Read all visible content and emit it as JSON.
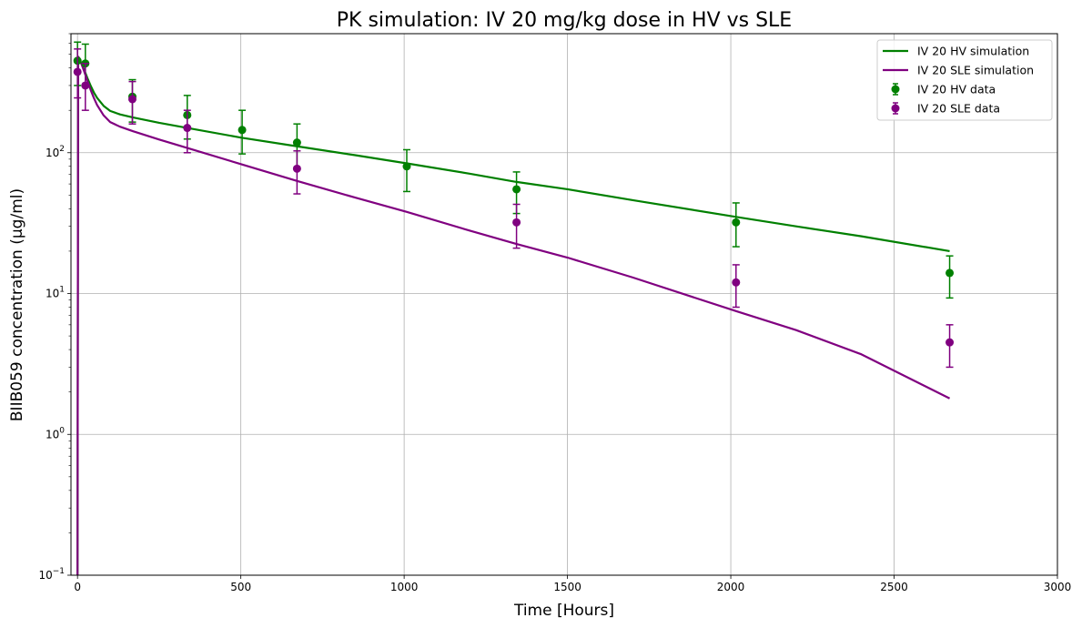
{
  "chart_data": {
    "type": "line",
    "title": "PK simulation: IV 20 mg/kg dose in HV vs SLE",
    "xlabel": "Time [Hours]",
    "ylabel": "BIIB059 concentration (µg/ml)",
    "xlim": [
      -20,
      3000
    ],
    "ylim": [
      0.1,
      700
    ],
    "yscale": "log",
    "grid": true,
    "legend_position": "top-right",
    "x_ticks": [
      0,
      500,
      1000,
      1500,
      2000,
      2500,
      3000
    ],
    "x_tick_labels": [
      "0",
      "500",
      "1000",
      "1500",
      "2000",
      "2500",
      "3000"
    ],
    "y_ticks": [
      0.1,
      1,
      10,
      100
    ],
    "y_tick_labels": [
      {
        "base": "10",
        "exp": "−1"
      },
      {
        "base": "10",
        "exp": "0"
      },
      {
        "base": "10",
        "exp": "1"
      },
      {
        "base": "10",
        "exp": "2"
      }
    ],
    "series": [
      {
        "name": "IV 20 HV simulation",
        "kind": "line",
        "color": "#008000",
        "x": [
          0,
          2,
          5,
          10,
          20,
          30,
          40,
          50,
          60,
          80,
          100,
          130,
          170,
          250,
          336,
          500,
          672,
          850,
          1008,
          1200,
          1344,
          1500,
          1700,
          2016,
          2200,
          2400,
          2670
        ],
        "y": [
          0.1,
          480,
          470,
          440,
          390,
          340,
          300,
          268,
          245,
          215,
          198,
          187,
          178,
          163,
          150,
          128,
          111,
          96,
          84,
          71,
          62,
          55,
          46,
          35,
          30,
          25.5,
          20
        ]
      },
      {
        "name": "IV 20 SLE simulation",
        "kind": "line",
        "color": "#800080",
        "x": [
          0,
          2,
          5,
          10,
          20,
          30,
          40,
          50,
          60,
          80,
          100,
          130,
          170,
          250,
          336,
          500,
          672,
          850,
          1008,
          1200,
          1344,
          1500,
          1700,
          2016,
          2200,
          2400,
          2670
        ],
        "y": [
          0.1,
          480,
          470,
          440,
          380,
          325,
          280,
          245,
          218,
          184,
          165,
          153,
          142,
          124,
          108,
          83,
          63,
          48,
          38,
          28,
          22.5,
          18,
          13,
          7.5,
          5.5,
          3.7,
          1.8
        ]
      },
      {
        "name": "IV 20 HV data",
        "kind": "errorbar",
        "color": "#008000",
        "x": [
          0,
          24,
          168,
          336,
          504,
          672,
          1008,
          1344,
          2016,
          2670
        ],
        "y": [
          450,
          430,
          250,
          185,
          145,
          118,
          80,
          55,
          32,
          14
        ],
        "yerr_low": [
          300,
          300,
          165,
          125,
          98,
          78,
          53,
          37,
          21.5,
          9.3
        ],
        "yerr_high": [
          610,
          590,
          330,
          255,
          200,
          160,
          105,
          73,
          44,
          18.5
        ]
      },
      {
        "name": "IV 20 SLE data",
        "kind": "errorbar",
        "color": "#800080",
        "x": [
          0,
          24,
          168,
          336,
          672,
          1344,
          2016,
          2670
        ],
        "y": [
          375,
          300,
          240,
          150,
          77,
          32,
          12,
          4.5
        ],
        "yerr_low": [
          245,
          200,
          160,
          100,
          51,
          21,
          8,
          3
        ],
        "yerr_high": [
          545,
          430,
          320,
          200,
          103,
          43,
          16,
          6
        ]
      }
    ]
  }
}
